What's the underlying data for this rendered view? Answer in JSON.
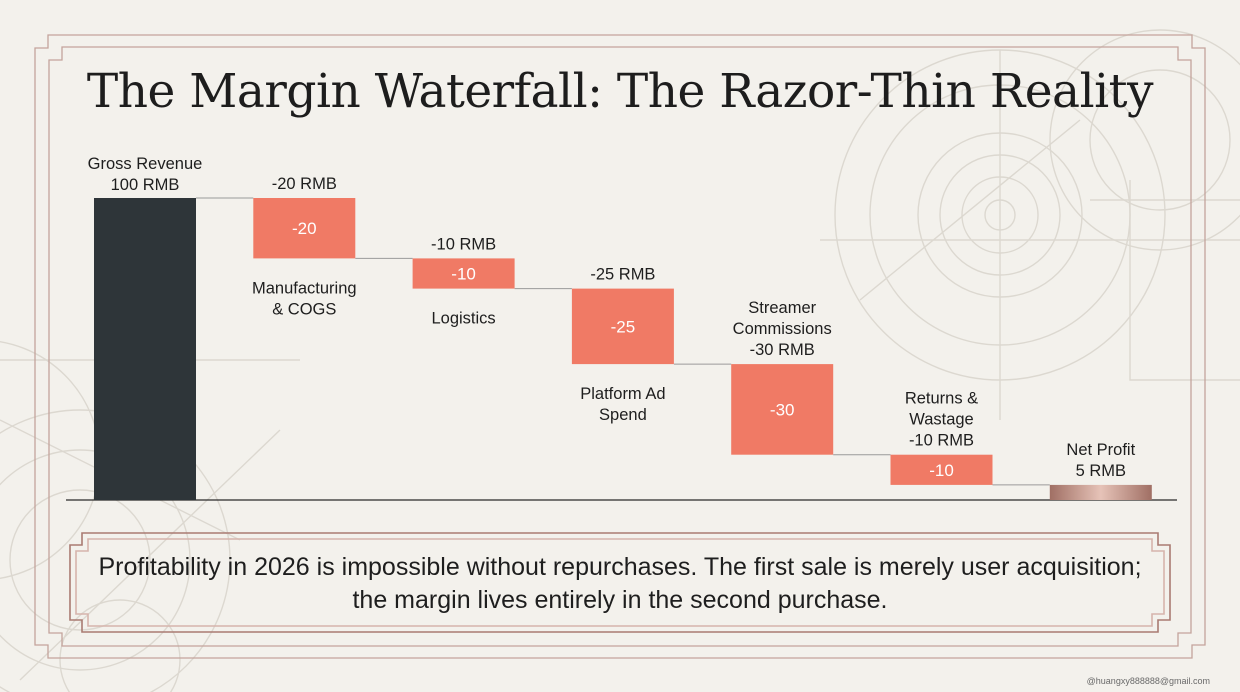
{
  "title": "The Margin Waterfall: The Razor-Thin Reality",
  "chart_data": {
    "type": "waterfall",
    "title": "The Margin Waterfall: The Razor-Thin Reality",
    "unit": "RMB",
    "ylim": [
      0,
      100
    ],
    "steps": [
      {
        "id": "gross",
        "kind": "total",
        "value": 100,
        "label_lines": [
          "Gross Revenue",
          "100 RMB"
        ],
        "color": "#2e3539"
      },
      {
        "id": "cogs",
        "kind": "delta",
        "value": -20,
        "value_text": "-20 RMB",
        "inner": "-20",
        "name_lines": [
          "Manufacturing",
          "& COGS"
        ],
        "color": "#f07a65"
      },
      {
        "id": "logistics",
        "kind": "delta",
        "value": -10,
        "value_text": "-10 RMB",
        "inner": "-10",
        "name_lines": [
          "Logistics"
        ],
        "color": "#f07a65"
      },
      {
        "id": "ads",
        "kind": "delta",
        "value": -25,
        "value_text": "-25 RMB",
        "inner": "-25",
        "name_lines": [
          "Platform Ad",
          "Spend"
        ],
        "color": "#f07a65"
      },
      {
        "id": "streamer",
        "kind": "delta",
        "value": -30,
        "inner": "-30",
        "label_lines": [
          "Streamer",
          "Commissions",
          "-30 RMB"
        ],
        "color": "#f07a65"
      },
      {
        "id": "returns",
        "kind": "delta",
        "value": -10,
        "inner": "-10",
        "label_lines": [
          "Returns &",
          "Wastage",
          "-10 RMB"
        ],
        "color": "#f07a65"
      },
      {
        "id": "net",
        "kind": "total",
        "value": 5,
        "label_lines": [
          "Net Profit",
          "5 RMB"
        ],
        "color": "#b98478"
      }
    ]
  },
  "callout": {
    "text": "Profitability in 2026 is impossible without repurchases. The first sale is merely user acquisition; the margin lives entirely in the second purchase."
  },
  "watermark": "@huangxy888888@gmail.com",
  "colors": {
    "background": "#f3f1ec",
    "frame": "#b48a80",
    "total_bar": "#2e3539",
    "negative_bar": "#f07a65",
    "net_bar": "#b98478"
  }
}
